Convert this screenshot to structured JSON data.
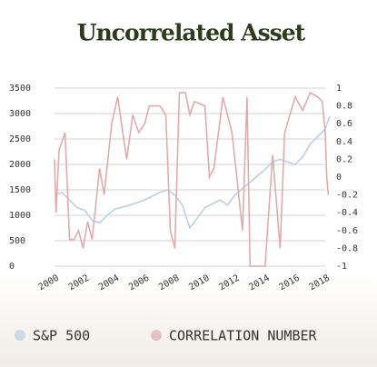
{
  "chart_data": {
    "type": "line",
    "title": "Uncorrelated Asset",
    "xlim": [
      2000,
      2018.3
    ],
    "xticks": [
      2000,
      2002,
      2004,
      2006,
      2008,
      2010,
      2012,
      2014,
      2016,
      2018
    ],
    "ylim": [
      0,
      3500
    ],
    "yticks": [
      0,
      500,
      1000,
      1500,
      2000,
      2500,
      3000,
      3500
    ],
    "y2lim": [
      -1,
      1
    ],
    "y2ticks": [
      -1,
      -0.8,
      -0.6,
      -0.4,
      -0.2,
      0,
      0.2,
      0.4,
      0.6,
      0.8,
      1
    ],
    "grid": true,
    "legend": "bottom",
    "series": [
      {
        "name": "S&P 500",
        "color": "#bccfe2",
        "x": [
          2000,
          2000.5,
          2001,
          2001.5,
          2002,
          2002.5,
          2003,
          2003.5,
          2004,
          2005,
          2006,
          2007,
          2007.5,
          2008,
          2008.5,
          2009,
          2009.5,
          2010,
          2011,
          2011.5,
          2012,
          2013,
          2014,
          2014.5,
          2015,
          2016,
          2016.5,
          2017,
          2017.5,
          2018,
          2018.3
        ],
        "values": [
          1400,
          1450,
          1300,
          1150,
          1100,
          900,
          850,
          1000,
          1120,
          1200,
          1300,
          1450,
          1500,
          1400,
          1200,
          750,
          950,
          1150,
          1300,
          1200,
          1400,
          1650,
          1900,
          2050,
          2100,
          2000,
          2150,
          2400,
          2550,
          2700,
          2950
        ]
      },
      {
        "name": "CORRELATION NUMBER",
        "color": "#dfacae",
        "axis": "y2",
        "x": [
          2000,
          2000.1,
          2000.3,
          2000.7,
          2001,
          2001.3,
          2001.6,
          2001.9,
          2002.2,
          2002.5,
          2003,
          2003.3,
          2003.8,
          2004.2,
          2004.8,
          2005.2,
          2005.6,
          2006,
          2006.3,
          2007,
          2007.4,
          2007.7,
          2008,
          2008.3,
          2008.7,
          2009,
          2009.3,
          2010,
          2010.3,
          2010.6,
          2011.2,
          2011.8,
          2012.5,
          2012.8,
          2013,
          2013.5,
          2014,
          2014.5,
          2015,
          2015.3,
          2016,
          2016.5,
          2017,
          2017.5,
          2017.8,
          2018,
          2018.1,
          2018.2
        ],
        "values": [
          0.2,
          -0.4,
          0.3,
          0.5,
          -0.7,
          -0.7,
          -0.6,
          -0.8,
          -0.5,
          -0.7,
          0.1,
          -0.2,
          0.6,
          0.9,
          0.2,
          0.7,
          0.5,
          0.6,
          0.8,
          0.8,
          0.7,
          -0.6,
          -0.8,
          0.95,
          0.95,
          0.7,
          0.85,
          0.8,
          0,
          0.1,
          0.9,
          0.5,
          -0.6,
          0.9,
          -1,
          -1,
          -1,
          0.25,
          -0.8,
          0.5,
          0.9,
          0.75,
          0.95,
          0.9,
          0.85,
          0.5,
          0,
          -0.2
        ]
      }
    ]
  }
}
